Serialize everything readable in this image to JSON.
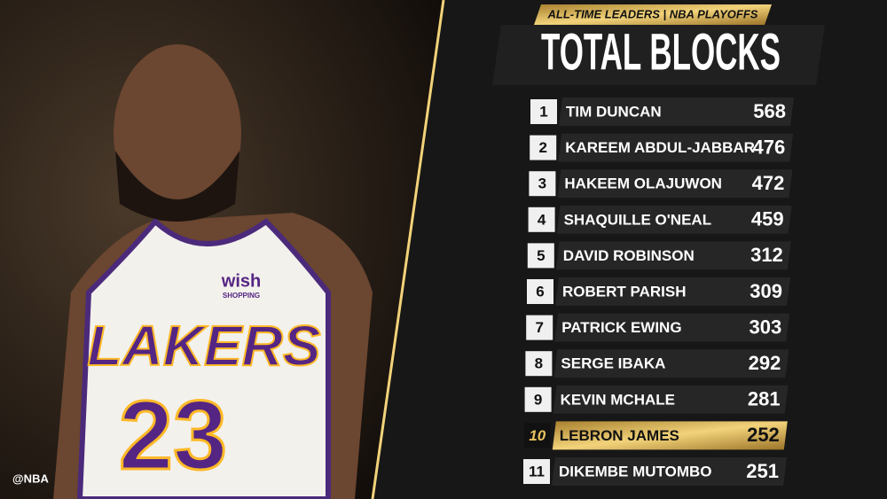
{
  "header": {
    "kicker": "ALL-TIME LEADERS | NBA PLAYOFFS",
    "title": "TOTAL BLOCKS"
  },
  "photo": {
    "jersey_name": "LAKERS",
    "jersey_number": "23",
    "sponsor": "wish",
    "sponsor_sub": "SHOPPING"
  },
  "watermark": "@NBA",
  "table": {
    "highlight_row": 9,
    "rows": [
      {
        "rank": 1,
        "name": "TIM DUNCAN",
        "value": 568
      },
      {
        "rank": 2,
        "name": "KAREEM ABDUL-JABBAR",
        "value": 476
      },
      {
        "rank": 3,
        "name": "HAKEEM OLAJUWON",
        "value": 472
      },
      {
        "rank": 4,
        "name": "SHAQUILLE O'NEAL",
        "value": 459
      },
      {
        "rank": 5,
        "name": "DAVID ROBINSON",
        "value": 312
      },
      {
        "rank": 6,
        "name": "ROBERT PARISH",
        "value": 309
      },
      {
        "rank": 7,
        "name": "PATRICK EWING",
        "value": 303
      },
      {
        "rank": 8,
        "name": "SERGE IBAKA",
        "value": 292
      },
      {
        "rank": 9,
        "name": "KEVIN MCHALE",
        "value": 281
      },
      {
        "rank": 10,
        "name": "LEBRON JAMES",
        "value": 252
      },
      {
        "rank": 11,
        "name": "DIKEMBE MUTOMBO",
        "value": 251
      }
    ]
  }
}
